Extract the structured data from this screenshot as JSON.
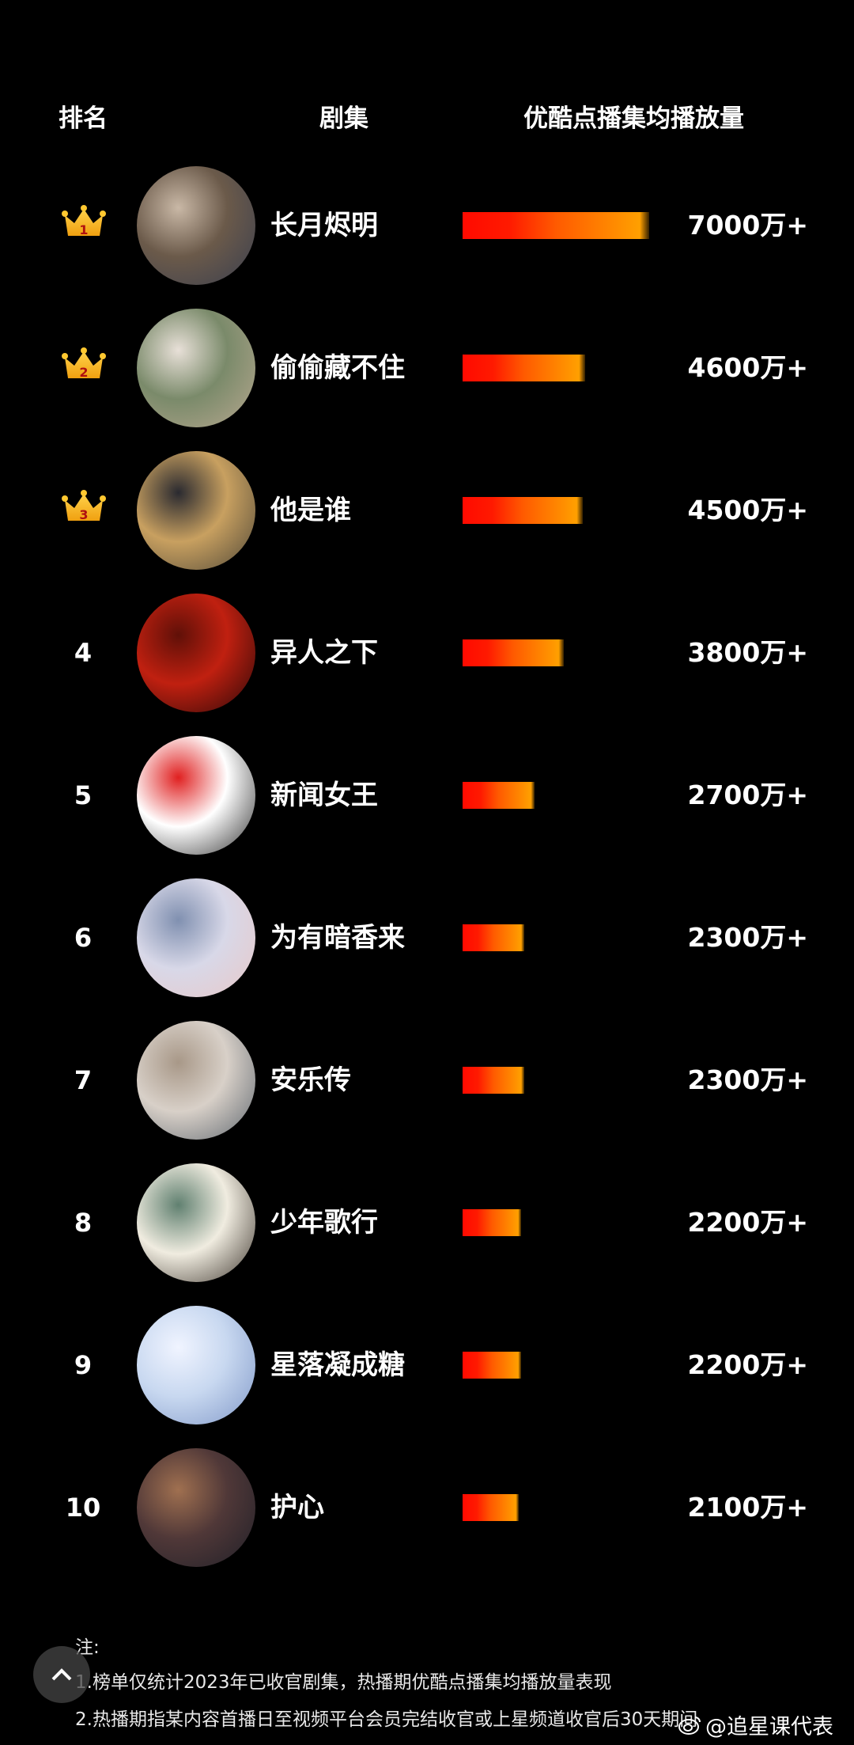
{
  "headers": {
    "rank": "排名",
    "drama": "剧集",
    "views": "优酷点播集均播放量"
  },
  "rows": [
    {
      "rank": "1",
      "title": "长月烬明",
      "value": "7000万+",
      "amount": 7000,
      "crown": true,
      "poster": [
        "#6b5a4a",
        "#c9b8a6",
        "#3a3f4f"
      ]
    },
    {
      "rank": "2",
      "title": "偷偷藏不住",
      "value": "4600万+",
      "amount": 4600,
      "crown": true,
      "poster": [
        "#7a8a6a",
        "#e8e0d8",
        "#b8a890"
      ]
    },
    {
      "rank": "3",
      "title": "他是谁",
      "value": "4500万+",
      "amount": 4500,
      "crown": true,
      "poster": [
        "#c8a060",
        "#2a2a30",
        "#504838"
      ]
    },
    {
      "rank": "4",
      "title": "异人之下",
      "value": "3800万+",
      "amount": 3800,
      "crown": false,
      "poster": [
        "#c02010",
        "#601008",
        "#2a0808"
      ]
    },
    {
      "rank": "5",
      "title": "新闻女王",
      "value": "2700万+",
      "amount": 2700,
      "crown": false,
      "poster": [
        "#ffffff",
        "#e02020",
        "#303030"
      ]
    },
    {
      "rank": "6",
      "title": "为有暗香来",
      "value": "2300万+",
      "amount": 2300,
      "crown": false,
      "poster": [
        "#d8d8e8",
        "#8090b0",
        "#e8c8c8"
      ]
    },
    {
      "rank": "7",
      "title": "安乐传",
      "value": "2300万+",
      "amount": 2300,
      "crown": false,
      "poster": [
        "#d8d0c8",
        "#a89888",
        "#606870"
      ]
    },
    {
      "rank": "8",
      "title": "少年歌行",
      "value": "2200万+",
      "amount": 2200,
      "crown": false,
      "poster": [
        "#f0ece0",
        "#608070",
        "#403830"
      ]
    },
    {
      "rank": "9",
      "title": "星落凝成糖",
      "value": "2200万+",
      "amount": 2200,
      "crown": false,
      "poster": [
        "#c8d8f0",
        "#f0f4ff",
        "#8098c8"
      ]
    },
    {
      "rank": "10",
      "title": "护心",
      "value": "2100万+",
      "amount": 2100,
      "crown": false,
      "poster": [
        "#503838",
        "#a07050",
        "#202028"
      ]
    }
  ],
  "notes": {
    "label": "注:",
    "line1": "1.榜单仅统计2023年已收官剧集，热播期优酷点播集均播放量表现",
    "line2": "2.热播期指某内容首播日至视频平台会员完结收官或上星频道收官后30天期间"
  },
  "watermark": "@追星课代表",
  "colors": {
    "bar_start": "#ff0a00",
    "bar_end": "#ffa000",
    "crown": "#f5b820"
  }
}
